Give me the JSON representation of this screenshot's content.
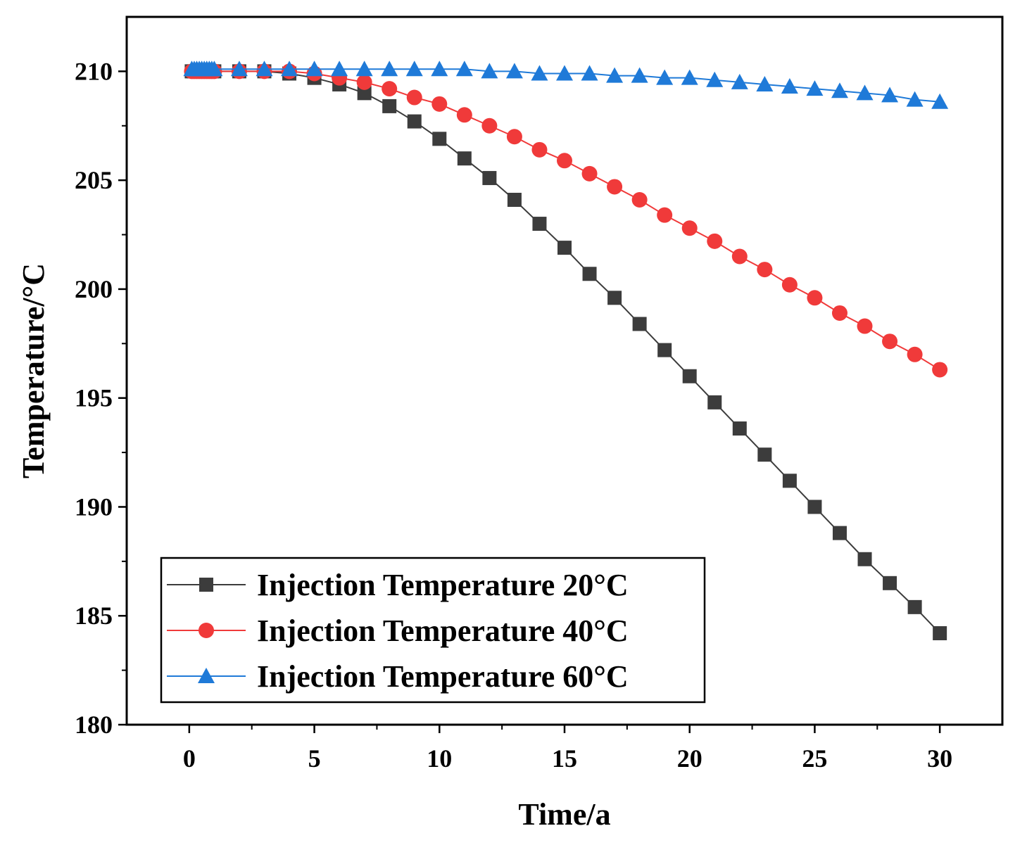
{
  "chart_data": {
    "type": "line",
    "xlabel": "Time/a",
    "ylabel": "Temperature/°C",
    "xlim": [
      -2.5,
      32.5
    ],
    "ylim": [
      180,
      212.5
    ],
    "xticks": [
      0,
      5,
      10,
      15,
      20,
      25,
      30
    ],
    "yticks": [
      180,
      185,
      190,
      195,
      200,
      205,
      210
    ],
    "grid": false,
    "legend_position": "bottom-left",
    "x": [
      0.1,
      0.2,
      0.3,
      0.4,
      0.5,
      0.6,
      0.7,
      0.8,
      0.9,
      1,
      2,
      3,
      4,
      5,
      6,
      7,
      8,
      9,
      10,
      11,
      12,
      13,
      14,
      15,
      16,
      17,
      18,
      19,
      20,
      21,
      22,
      23,
      24,
      25,
      26,
      27,
      28,
      29,
      30
    ],
    "series": [
      {
        "name": "Injection Temperature 20°C",
        "color": "#3c3c3c",
        "marker": "square",
        "values": [
          210,
          210,
          210,
          210,
          210,
          210,
          210,
          210,
          210,
          210,
          210,
          210,
          209.9,
          209.7,
          209.4,
          209.0,
          208.4,
          207.7,
          206.9,
          206.0,
          205.1,
          204.1,
          203.0,
          201.9,
          200.7,
          199.6,
          198.4,
          197.2,
          196.0,
          194.8,
          193.6,
          192.4,
          191.2,
          190.0,
          188.8,
          187.6,
          186.5,
          185.4,
          184.2
        ]
      },
      {
        "name": "Injection Temperature 40°C",
        "color": "#f03a3a",
        "marker": "circle",
        "values": [
          210,
          210,
          210,
          210,
          210,
          210,
          210,
          210,
          210,
          210,
          210,
          210,
          210.0,
          209.9,
          209.7,
          209.5,
          209.2,
          208.8,
          208.5,
          208.0,
          207.5,
          207.0,
          206.4,
          205.9,
          205.3,
          204.7,
          204.1,
          203.4,
          202.8,
          202.2,
          201.5,
          200.9,
          200.2,
          199.6,
          198.9,
          198.3,
          197.6,
          197.0,
          196.3
        ]
      },
      {
        "name": "Injection Temperature 60°C",
        "color": "#1f7ad8",
        "marker": "triangle",
        "values": [
          210.1,
          210.1,
          210.1,
          210.1,
          210.1,
          210.1,
          210.1,
          210.1,
          210.1,
          210.1,
          210.1,
          210.1,
          210.1,
          210.1,
          210.1,
          210.1,
          210.1,
          210.1,
          210.1,
          210.1,
          210.0,
          210.0,
          209.9,
          209.9,
          209.9,
          209.8,
          209.8,
          209.7,
          209.7,
          209.6,
          209.5,
          209.4,
          209.3,
          209.2,
          209.1,
          209.0,
          208.9,
          208.7,
          208.6
        ]
      }
    ]
  }
}
